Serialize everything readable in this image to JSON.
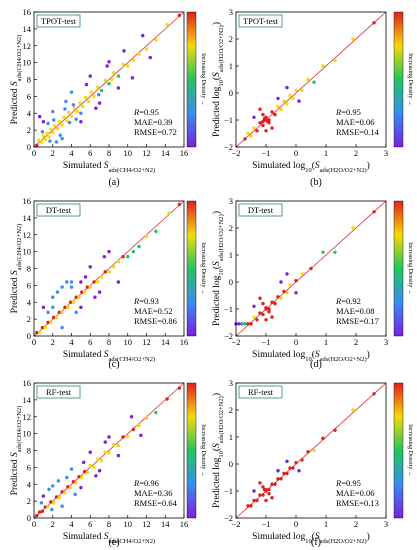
{
  "colors": {
    "low_density": "#7a1fe0",
    "mid_low": "#3a8cf0",
    "mid": "#22c55e",
    "mid_high": "#f5d90a",
    "high": "#e02020",
    "identity_line": "#e03030",
    "title_box_border": "#2e8b57"
  },
  "chart_data": [
    {
      "panel": "(a)",
      "type": "scatter",
      "title": "TPOT-test",
      "xlabel": "Simulated S_ads(CH4/O2+N2)",
      "ylabel": "Predicted S_ads(CH4/O2+N2)",
      "xlim": [
        0,
        16
      ],
      "ylim": [
        0,
        16
      ],
      "xticks": [
        "0",
        "2",
        "4",
        "6",
        "8",
        "10",
        "12",
        "14",
        "16"
      ],
      "yticks": [
        "0",
        "2",
        "4",
        "6",
        "8",
        "10",
        "12",
        "14",
        "16"
      ],
      "stats": [
        "R=0.95",
        "MAE=0.39",
        "RMSE=0.72"
      ],
      "colorbar_label": "Increasing Density →",
      "points": [
        [
          0.3,
          0.2
        ],
        [
          0.5,
          0.8
        ],
        [
          0.8,
          0.6
        ],
        [
          1.0,
          1.3
        ],
        [
          1.2,
          0.9
        ],
        [
          1.4,
          1.6
        ],
        [
          1.6,
          1.2
        ],
        [
          1.8,
          2.1
        ],
        [
          2.0,
          1.7
        ],
        [
          2.2,
          2.5
        ],
        [
          2.5,
          2.2
        ],
        [
          2.7,
          3.0
        ],
        [
          3.0,
          2.6
        ],
        [
          3.2,
          3.5
        ],
        [
          3.5,
          3.1
        ],
        [
          3.7,
          4.1
        ],
        [
          4.0,
          3.6
        ],
        [
          4.3,
          4.6
        ],
        [
          4.6,
          4.2
        ],
        [
          4.9,
          5.2
        ],
        [
          5.2,
          4.8
        ],
        [
          5.5,
          5.9
        ],
        [
          5.8,
          5.4
        ],
        [
          6.1,
          6.5
        ],
        [
          6.4,
          6.0
        ],
        [
          6.8,
          7.1
        ],
        [
          7.2,
          6.7
        ],
        [
          7.6,
          7.9
        ],
        [
          8.0,
          7.5
        ],
        [
          8.5,
          8.8
        ],
        [
          9.0,
          8.4
        ],
        [
          9.5,
          9.8
        ],
        [
          10.0,
          9.6
        ],
        [
          10.6,
          10.3
        ],
        [
          11.2,
          11.0
        ],
        [
          12.0,
          11.6
        ],
        [
          13.0,
          12.7
        ],
        [
          14.2,
          14.5
        ],
        [
          15.5,
          15.6
        ],
        [
          1.0,
          3.0
        ],
        [
          2.0,
          4.2
        ],
        [
          3.0,
          1.0
        ],
        [
          5.0,
          3.0
        ],
        [
          4.0,
          6.5
        ],
        [
          6.0,
          8.4
        ],
        [
          7.0,
          5.2
        ],
        [
          8.0,
          10.1
        ],
        [
          9.0,
          7.0
        ],
        [
          0.6,
          3.6
        ],
        [
          2.4,
          0.6
        ],
        [
          3.4,
          5.4
        ],
        [
          5.6,
          7.4
        ],
        [
          6.6,
          4.6
        ],
        [
          7.8,
          9.6
        ],
        [
          9.6,
          11.4
        ],
        [
          10.5,
          8.2
        ],
        [
          11.6,
          13.2
        ],
        [
          12.4,
          10.6
        ],
        [
          1.5,
          2.8
        ],
        [
          2.8,
          1.4
        ],
        [
          4.2,
          5.0
        ],
        [
          5.0,
          4.0
        ],
        [
          3.8,
          2.9
        ],
        [
          2.1,
          3.2
        ],
        [
          0.9,
          1.8
        ],
        [
          1.7,
          0.7
        ],
        [
          6.9,
          6.2
        ],
        [
          8.3,
          8.0
        ],
        [
          4.5,
          3.3
        ],
        [
          3.3,
          4.5
        ]
      ]
    },
    {
      "panel": "(b)",
      "type": "scatter",
      "title": "TPOT-test",
      "xlabel": "Simulated log10(S_ads(H2O/O2+N2))",
      "ylabel": "Predicted log10(S_ads(H2O/O2+N2))",
      "xlim": [
        -2,
        3
      ],
      "ylim": [
        -2,
        3
      ],
      "xticks": [
        "−2",
        "−1",
        "0",
        "1",
        "2",
        "3"
      ],
      "yticks": [
        "−2",
        "−1",
        "0",
        "1",
        "2",
        "3"
      ],
      "stats": [
        "R=0.95",
        "MAE=0.06",
        "RMSE=0.14"
      ],
      "colorbar_label": "Increasing Density →",
      "points": [
        [
          -1.6,
          -1.5
        ],
        [
          -1.5,
          -1.6
        ],
        [
          -1.4,
          -1.3
        ],
        [
          -1.3,
          -1.4
        ],
        [
          -1.2,
          -1.1
        ],
        [
          -1.1,
          -1.2
        ],
        [
          -1.0,
          -0.9
        ],
        [
          -0.9,
          -1.0
        ],
        [
          -0.8,
          -0.7
        ],
        [
          -0.7,
          -0.8
        ],
        [
          -0.6,
          -0.5
        ],
        [
          -0.5,
          -0.6
        ],
        [
          -0.4,
          -0.3
        ],
        [
          -0.3,
          -0.4
        ],
        [
          -0.2,
          -0.1
        ],
        [
          -0.1,
          -0.2
        ],
        [
          0.0,
          0.1
        ],
        [
          0.2,
          0.1
        ],
        [
          0.4,
          0.5
        ],
        [
          0.6,
          0.4
        ],
        [
          0.9,
          1.0
        ],
        [
          1.3,
          1.2
        ],
        [
          1.9,
          2.0
        ],
        [
          2.6,
          2.6
        ],
        [
          -1.2,
          -0.6
        ],
        [
          -0.8,
          -1.3
        ],
        [
          -1.4,
          -0.9
        ],
        [
          -0.6,
          -0.2
        ],
        [
          -1.0,
          -1.4
        ],
        [
          -0.3,
          0.2
        ],
        [
          0.1,
          -0.3
        ],
        [
          -1.7,
          -1.7
        ],
        [
          -1.1,
          -0.8
        ],
        [
          -0.9,
          -1.1
        ],
        [
          -1.0,
          -1.0
        ],
        [
          -1.05,
          -0.95
        ],
        [
          -0.95,
          -1.05
        ],
        [
          -1.1,
          -1.05
        ]
      ]
    },
    {
      "panel": "(c)",
      "type": "scatter",
      "title": "DT-test",
      "xlabel": "Simulated S_ads(CH4/O2+N2)",
      "ylabel": "Predicted S_ads(CH4/O2+N2)",
      "xlim": [
        0,
        16
      ],
      "ylim": [
        0,
        16
      ],
      "xticks": [
        "0",
        "2",
        "4",
        "6",
        "8",
        "10",
        "12",
        "14",
        "16"
      ],
      "yticks": [
        "0",
        "2",
        "4",
        "6",
        "8",
        "10",
        "12",
        "14",
        "16"
      ],
      "stats": [
        "R=0.93",
        "MAE=0.52",
        "RMSE=0.86"
      ],
      "colorbar_label": "Increasing Density →",
      "points": [
        [
          0.3,
          0.4
        ],
        [
          0.6,
          0.4
        ],
        [
          0.9,
          1.0
        ],
        [
          1.2,
          1.0
        ],
        [
          1.5,
          1.6
        ],
        [
          1.8,
          1.6
        ],
        [
          2.1,
          2.2
        ],
        [
          2.4,
          2.2
        ],
        [
          2.7,
          2.8
        ],
        [
          3.0,
          2.8
        ],
        [
          3.3,
          3.4
        ],
        [
          3.6,
          3.4
        ],
        [
          3.9,
          4.0
        ],
        [
          4.2,
          4.0
        ],
        [
          4.5,
          4.6
        ],
        [
          4.8,
          4.6
        ],
        [
          5.1,
          5.2
        ],
        [
          5.4,
          5.2
        ],
        [
          5.7,
          5.8
        ],
        [
          6.0,
          5.8
        ],
        [
          6.4,
          6.4
        ],
        [
          6.8,
          6.4
        ],
        [
          7.2,
          7.0
        ],
        [
          7.6,
          7.6
        ],
        [
          8.0,
          7.6
        ],
        [
          8.5,
          8.2
        ],
        [
          9.0,
          8.8
        ],
        [
          9.5,
          9.4
        ],
        [
          10.0,
          9.4
        ],
        [
          10.6,
          10.0
        ],
        [
          11.2,
          10.6
        ],
        [
          12.0,
          11.8
        ],
        [
          13.0,
          12.4
        ],
        [
          14.4,
          14.6
        ],
        [
          15.5,
          15.6
        ],
        [
          1.0,
          3.4
        ],
        [
          2.0,
          4.6
        ],
        [
          3.0,
          1.0
        ],
        [
          5.0,
          3.4
        ],
        [
          4.0,
          6.4
        ],
        [
          6.0,
          8.2
        ],
        [
          7.0,
          5.2
        ],
        [
          8.0,
          10.0
        ],
        [
          9.0,
          6.4
        ],
        [
          2.5,
          5.2
        ],
        [
          3.5,
          6.4
        ],
        [
          4.5,
          2.8
        ],
        [
          6.5,
          4.6
        ],
        [
          7.5,
          9.4
        ],
        [
          1.5,
          2.8
        ],
        [
          5.5,
          7.0
        ],
        [
          3.0,
          5.8
        ],
        [
          4.0,
          5.8
        ],
        [
          5.0,
          6.4
        ],
        [
          2.0,
          3.4
        ]
      ]
    },
    {
      "panel": "(d)",
      "type": "scatter",
      "title": "DT-test",
      "xlabel": "Simulated log10(S_ads(H2O/O2+N2))",
      "ylabel": "Predicted log10(S_ads(H2O/O2+N2))",
      "xlim": [
        -2,
        3
      ],
      "ylim": [
        -2,
        3
      ],
      "xticks": [
        "−2",
        "−1",
        "0",
        "1",
        "2",
        "3"
      ],
      "yticks": [
        "−2",
        "−1",
        "0",
        "1",
        "2",
        "3"
      ],
      "stats": [
        "R=0.92",
        "MAE=0.08",
        "RMSE=0.17"
      ],
      "colorbar_label": "Increasing Density →",
      "points": [
        [
          -2.0,
          -1.55
        ],
        [
          -1.9,
          -1.55
        ],
        [
          -1.8,
          -1.55
        ],
        [
          -1.7,
          -1.55
        ],
        [
          -1.6,
          -1.55
        ],
        [
          -1.5,
          -1.55
        ],
        [
          -1.4,
          -1.3
        ],
        [
          -1.3,
          -1.4
        ],
        [
          -1.2,
          -1.15
        ],
        [
          -1.1,
          -1.2
        ],
        [
          -1.0,
          -0.95
        ],
        [
          -0.9,
          -1.0
        ],
        [
          -0.8,
          -0.75
        ],
        [
          -0.7,
          -0.8
        ],
        [
          -0.6,
          -0.55
        ],
        [
          -0.5,
          -0.6
        ],
        [
          -0.4,
          -0.35
        ],
        [
          -0.3,
          -0.4
        ],
        [
          -0.2,
          -0.1
        ],
        [
          0.0,
          0.05
        ],
        [
          0.2,
          0.3
        ],
        [
          0.5,
          0.5
        ],
        [
          0.9,
          1.1
        ],
        [
          1.3,
          1.1
        ],
        [
          1.9,
          2.0
        ],
        [
          2.6,
          2.6
        ],
        [
          -1.2,
          -0.6
        ],
        [
          -0.8,
          -1.3
        ],
        [
          -1.4,
          -0.9
        ],
        [
          -0.5,
          0.0
        ],
        [
          -1.0,
          -1.4
        ],
        [
          -0.3,
          0.3
        ],
        [
          0.0,
          -0.4
        ],
        [
          -1.1,
          -0.8
        ],
        [
          -0.9,
          -1.1
        ],
        [
          -1.0,
          -1.0
        ]
      ]
    },
    {
      "panel": "(e)",
      "type": "scatter",
      "title": "RF-test",
      "xlabel": "Simulated S_ads(CH4/O2+N2)",
      "ylabel": "Predicted S_ads(CH4/O2+N2)",
      "xlim": [
        0,
        16
      ],
      "ylim": [
        0,
        16
      ],
      "xticks": [
        "0",
        "2",
        "4",
        "6",
        "8",
        "10",
        "12",
        "14",
        "16"
      ],
      "yticks": [
        "0",
        "2",
        "4",
        "6",
        "8",
        "10",
        "12",
        "14",
        "16"
      ],
      "stats": [
        "R=0.96",
        "MAE=0.36",
        "RMSE=0.64"
      ],
      "colorbar_label": "Increasing Density →",
      "points": [
        [
          0.3,
          0.3
        ],
        [
          0.6,
          0.7
        ],
        [
          0.9,
          0.8
        ],
        [
          1.2,
          1.3
        ],
        [
          1.5,
          1.3
        ],
        [
          1.8,
          1.9
        ],
        [
          2.1,
          1.8
        ],
        [
          2.4,
          2.5
        ],
        [
          2.7,
          2.4
        ],
        [
          3.0,
          3.1
        ],
        [
          3.3,
          3.0
        ],
        [
          3.6,
          3.7
        ],
        [
          3.9,
          3.6
        ],
        [
          4.2,
          4.3
        ],
        [
          4.5,
          4.2
        ],
        [
          4.8,
          4.9
        ],
        [
          5.1,
          4.8
        ],
        [
          5.4,
          5.5
        ],
        [
          5.7,
          5.4
        ],
        [
          6.0,
          6.2
        ],
        [
          6.4,
          6.0
        ],
        [
          6.8,
          7.0
        ],
        [
          7.2,
          6.8
        ],
        [
          7.6,
          7.8
        ],
        [
          8.0,
          7.7
        ],
        [
          8.5,
          8.7
        ],
        [
          9.0,
          8.6
        ],
        [
          9.5,
          9.6
        ],
        [
          10.0,
          9.7
        ],
        [
          10.6,
          10.5
        ],
        [
          11.2,
          11.0
        ],
        [
          12.0,
          11.8
        ],
        [
          13.0,
          12.5
        ],
        [
          14.2,
          14.1
        ],
        [
          15.5,
          15.4
        ],
        [
          1.0,
          2.6
        ],
        [
          2.0,
          3.8
        ],
        [
          3.0,
          1.4
        ],
        [
          5.0,
          3.6
        ],
        [
          4.0,
          5.8
        ],
        [
          6.0,
          7.8
        ],
        [
          7.0,
          5.6
        ],
        [
          8.0,
          9.6
        ],
        [
          9.0,
          7.4
        ],
        [
          1.6,
          3.4
        ],
        [
          2.6,
          4.4
        ],
        [
          4.4,
          2.8
        ],
        [
          6.6,
          5.0
        ],
        [
          7.6,
          9.0
        ],
        [
          10.4,
          12.0
        ],
        [
          11.4,
          9.8
        ],
        [
          0.8,
          1.8
        ],
        [
          1.9,
          1.0
        ],
        [
          3.5,
          4.8
        ],
        [
          5.3,
          6.6
        ]
      ]
    },
    {
      "panel": "(f)",
      "type": "scatter",
      "title": "RF-test",
      "xlabel": "Simulated log10(S_ads(H2O/O2+N2))",
      "ylabel": "Predicted log10(S_ads(H2O/O2+N2))",
      "xlim": [
        -2,
        3
      ],
      "ylim": [
        -2,
        3
      ],
      "xticks": [
        "−2",
        "−1",
        "0",
        "1",
        "2",
        "3"
      ],
      "yticks": [
        "−2",
        "−1",
        "0",
        "1",
        "2",
        "3"
      ],
      "stats": [
        "R=0.95",
        "MAE=0.06",
        "RMSE=0.13"
      ],
      "colorbar_label": "Increasing Density →",
      "points": [
        [
          -1.6,
          -1.55
        ],
        [
          -1.5,
          -1.55
        ],
        [
          -1.4,
          -1.35
        ],
        [
          -1.3,
          -1.35
        ],
        [
          -1.2,
          -1.15
        ],
        [
          -1.1,
          -1.15
        ],
        [
          -1.0,
          -0.95
        ],
        [
          -0.9,
          -0.95
        ],
        [
          -0.8,
          -0.75
        ],
        [
          -0.7,
          -0.75
        ],
        [
          -0.6,
          -0.55
        ],
        [
          -0.5,
          -0.55
        ],
        [
          -0.4,
          -0.35
        ],
        [
          -0.3,
          -0.35
        ],
        [
          -0.2,
          -0.15
        ],
        [
          -0.1,
          -0.15
        ],
        [
          0.0,
          0.05
        ],
        [
          0.2,
          0.15
        ],
        [
          0.4,
          0.45
        ],
        [
          0.6,
          0.5
        ],
        [
          0.9,
          0.95
        ],
        [
          1.3,
          1.25
        ],
        [
          1.9,
          2.0
        ],
        [
          2.6,
          2.6
        ],
        [
          -1.2,
          -0.7
        ],
        [
          -0.8,
          -1.25
        ],
        [
          -1.4,
          -1.0
        ],
        [
          -0.6,
          -0.25
        ],
        [
          -1.0,
          -1.35
        ],
        [
          -0.3,
          0.1
        ],
        [
          0.1,
          -0.25
        ],
        [
          -1.1,
          -0.85
        ],
        [
          -0.9,
          -1.1
        ],
        [
          -1.0,
          -1.0
        ],
        [
          -1.05,
          -0.95
        ]
      ]
    }
  ]
}
